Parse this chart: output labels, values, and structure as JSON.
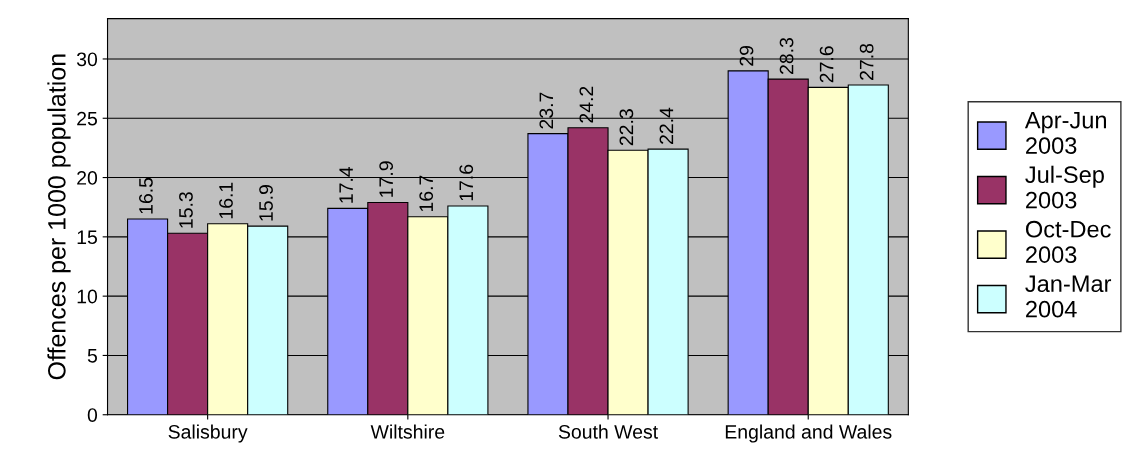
{
  "chart_data": {
    "type": "bar",
    "ylabel": "Offences per 1000 population",
    "categories": [
      "Salisbury",
      "Wiltshire",
      "South West",
      "England and Wales"
    ],
    "series": [
      {
        "name": "Apr-Jun\n2003",
        "color": "#9999ff",
        "values": [
          16.5,
          17.4,
          23.7,
          29
        ]
      },
      {
        "name": "Jul-Sep\n2003",
        "color": "#993366",
        "values": [
          15.3,
          17.9,
          24.2,
          28.3
        ]
      },
      {
        "name": "Oct-Dec\n2003",
        "color": "#ffffcc",
        "values": [
          16.1,
          16.7,
          22.3,
          27.6
        ]
      },
      {
        "name": "Jan-Mar\n2004",
        "color": "#ccffff",
        "values": [
          15.9,
          17.6,
          22.4,
          27.8
        ]
      }
    ],
    "ylim": [
      0,
      33.4
    ],
    "yticks": [
      0,
      5,
      10,
      15,
      20,
      25,
      30
    ],
    "grid": "y",
    "legend": "right",
    "data_labels": true
  }
}
